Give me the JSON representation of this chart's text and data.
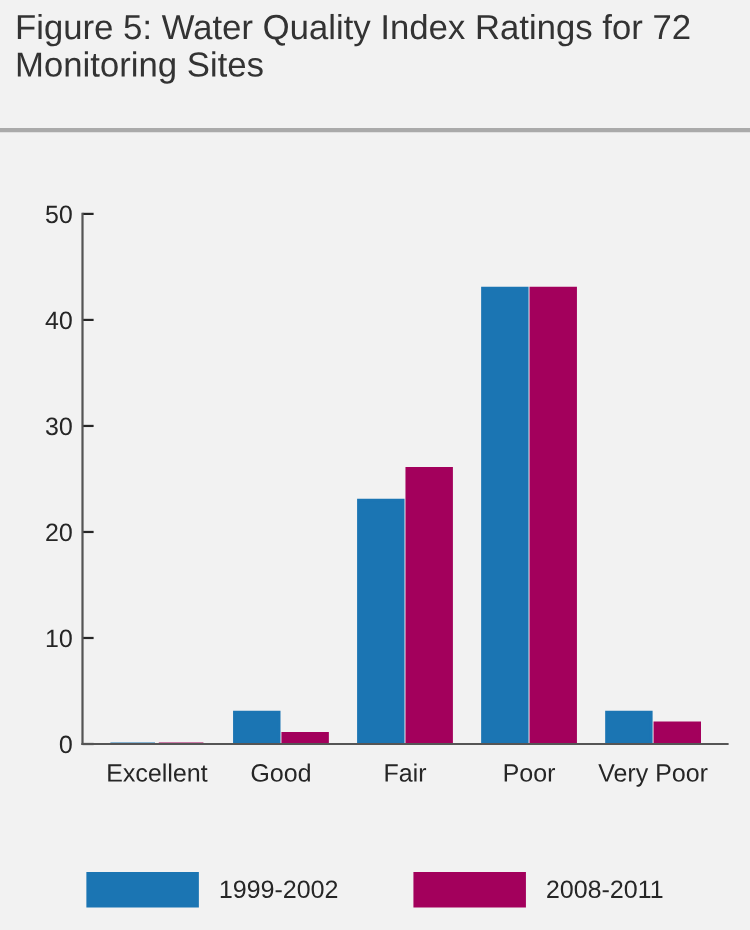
{
  "chart_data": {
    "type": "bar",
    "title": "Figure 5: Water Quality Index Ratings for 72 Monitoring Sites",
    "categories": [
      "Excellent",
      "Good",
      "Fair",
      "Poor",
      "Very Poor"
    ],
    "series": [
      {
        "name": "1999-2002",
        "color": "#1b75b3",
        "values": [
          0,
          3,
          23,
          43,
          3
        ]
      },
      {
        "name": "2008-2011",
        "color": "#a3005c",
        "values": [
          0,
          1,
          26,
          43,
          2
        ]
      }
    ],
    "ylim": [
      0,
      50
    ],
    "yticks": [
      0,
      10,
      20,
      30,
      40,
      50
    ],
    "grid": false,
    "legend": "bottom"
  }
}
